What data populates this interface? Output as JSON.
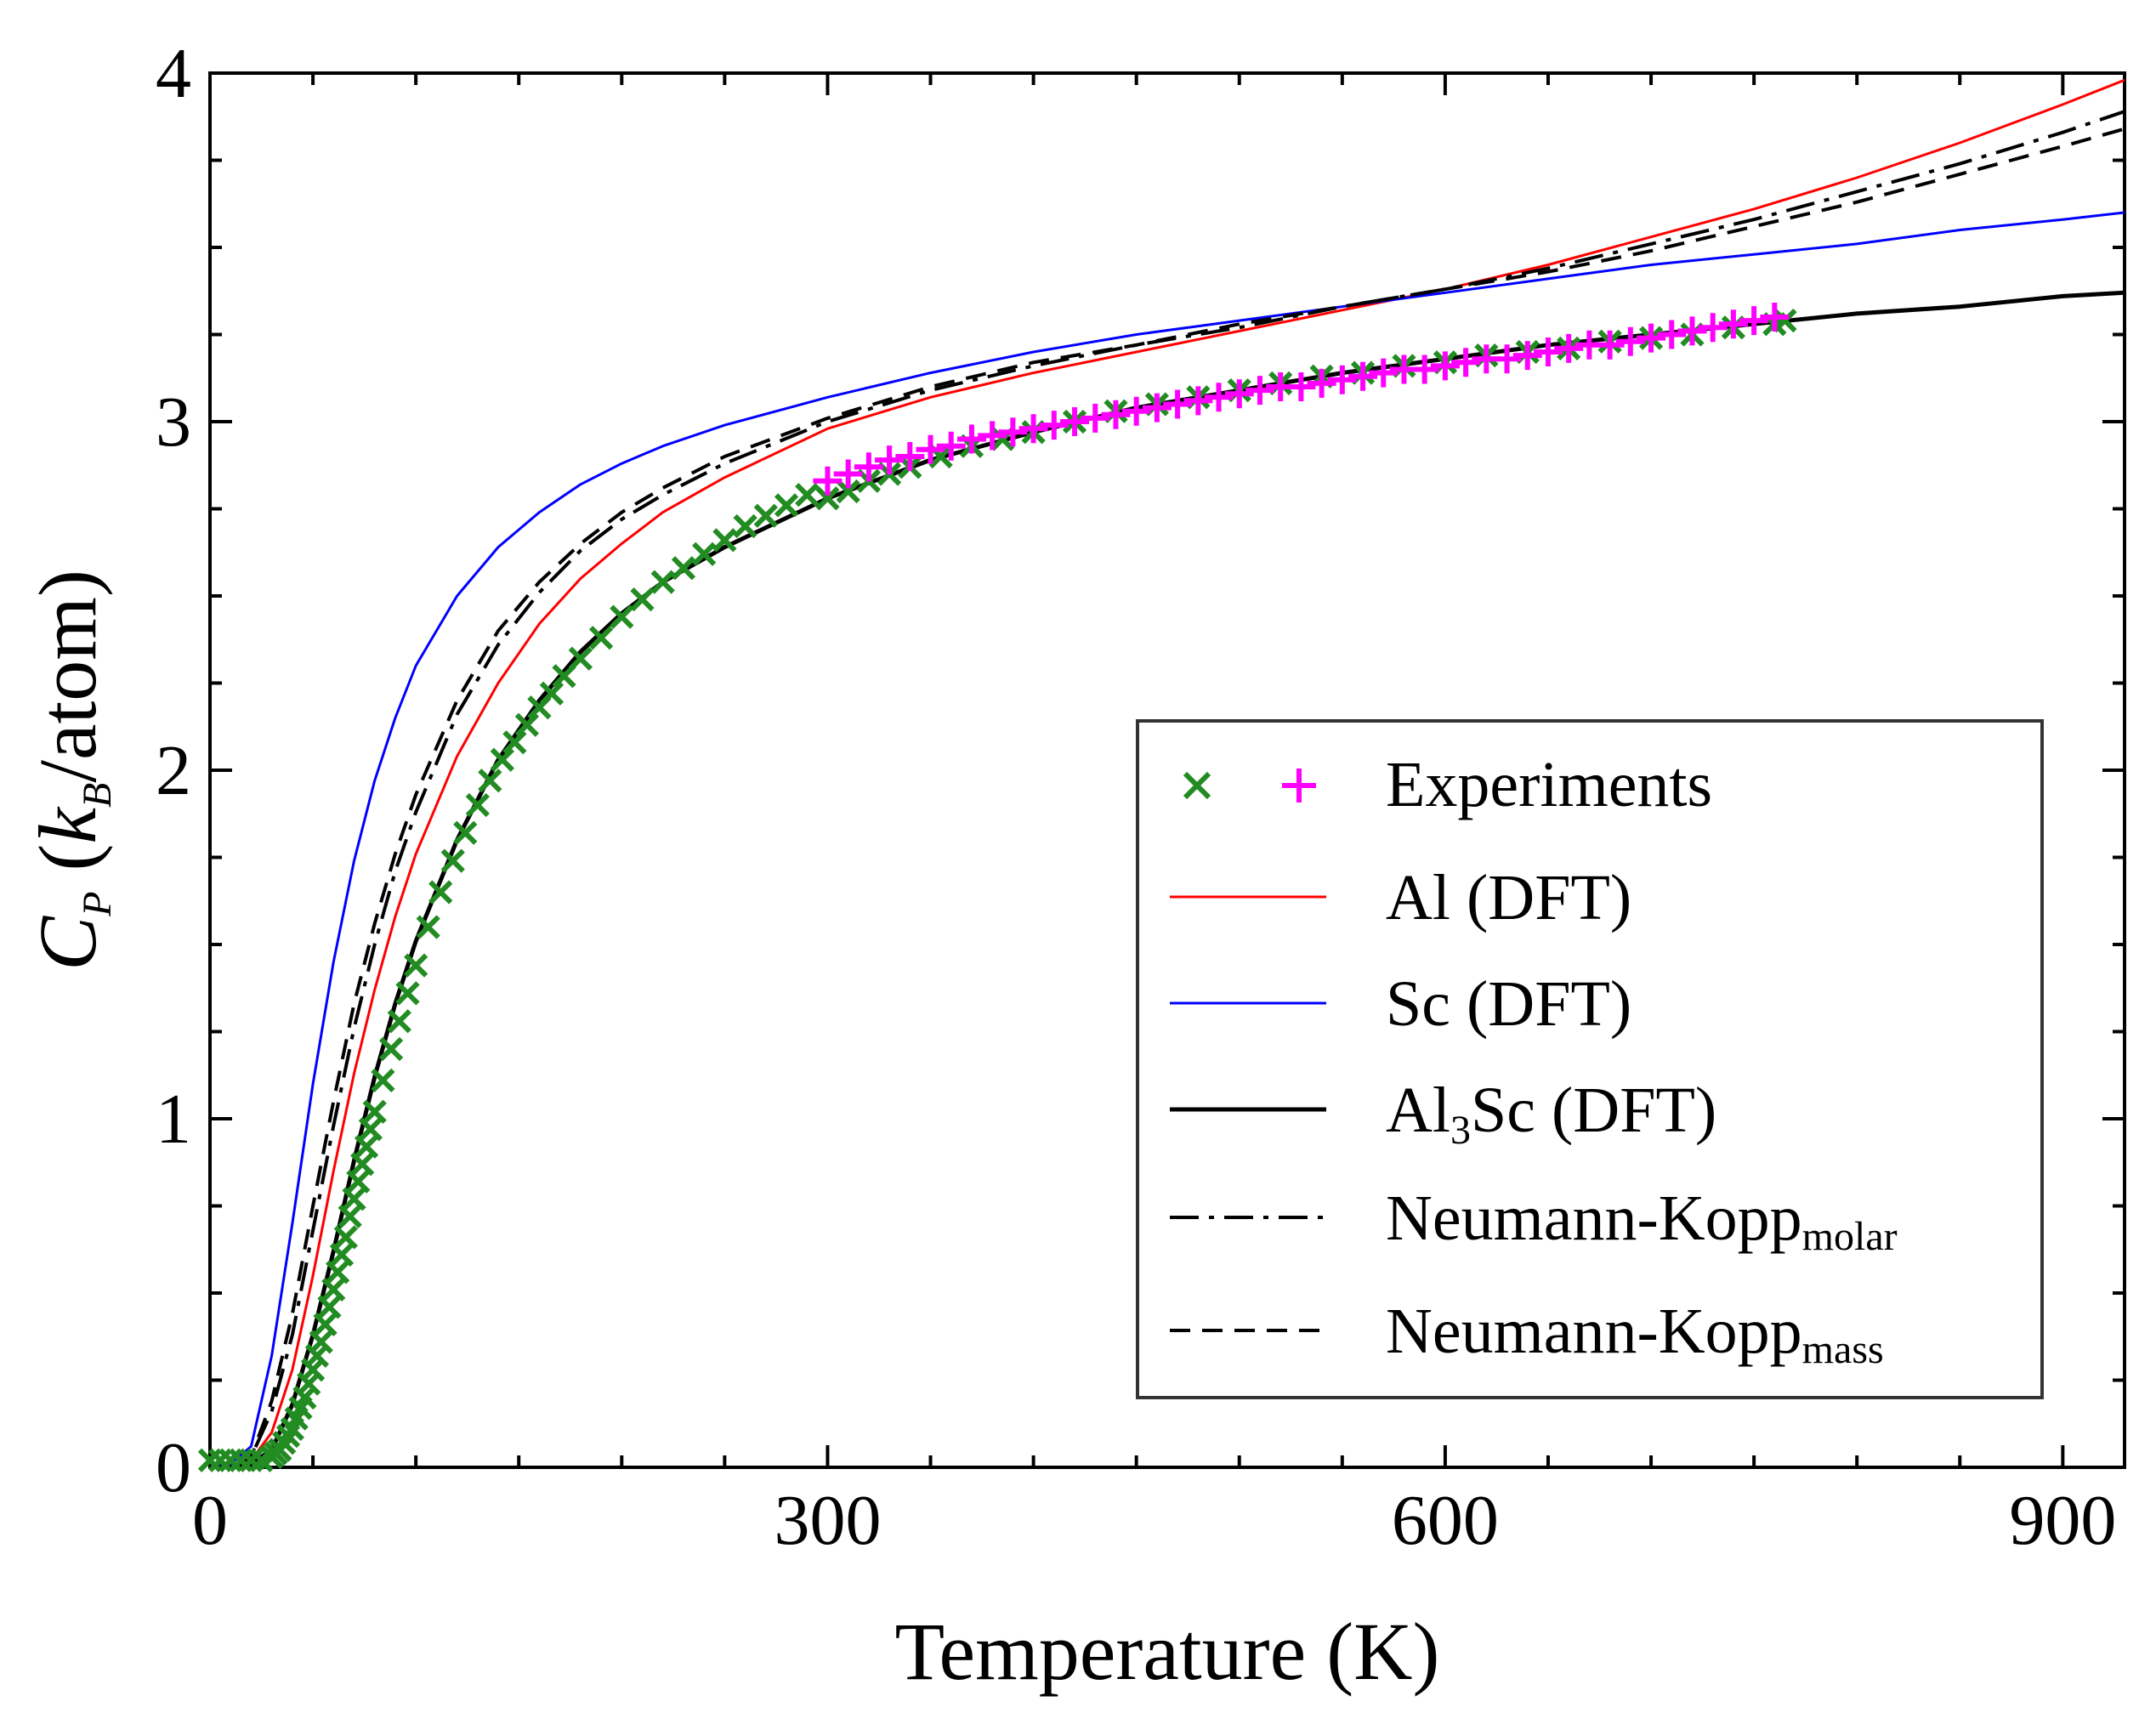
{
  "chart_data": {
    "type": "line",
    "title": "",
    "xlabel": "Temperature (K)",
    "ylabel": {
      "main": "C",
      "main_sub": "P",
      "paren_open": " (",
      "k": "k",
      "k_sub": "B",
      "rest": "/atom)"
    },
    "xlim": [
      0,
      930
    ],
    "ylim": [
      0,
      4
    ],
    "x_ticks": [
      0,
      300,
      600,
      900
    ],
    "x_tick_labels": [
      "0",
      "300",
      "600",
      "900"
    ],
    "y_ticks": [
      0,
      1,
      2,
      3,
      4
    ],
    "y_tick_labels": [
      "0",
      "1",
      "2",
      "3",
      "4"
    ],
    "x_minor_step": 50,
    "y_minor_step": 0.25,
    "grid": false,
    "legend_position": "bottom-right",
    "series": [
      {
        "name": "Al (DFT)",
        "key": "al",
        "style": "solid",
        "color": "#ff0000",
        "width": 3,
        "x": [
          0,
          10,
          20,
          30,
          40,
          50,
          60,
          70,
          80,
          90,
          100,
          120,
          140,
          160,
          180,
          200,
          220,
          250,
          300,
          350,
          400,
          450,
          500,
          550,
          600,
          650,
          700,
          750,
          800,
          850,
          900,
          930
        ],
        "y": [
          0.0,
          0.0,
          0.02,
          0.1,
          0.28,
          0.55,
          0.85,
          1.13,
          1.37,
          1.58,
          1.76,
          2.04,
          2.25,
          2.42,
          2.55,
          2.65,
          2.74,
          2.84,
          2.98,
          3.07,
          3.14,
          3.2,
          3.26,
          3.32,
          3.38,
          3.45,
          3.53,
          3.61,
          3.7,
          3.8,
          3.91,
          3.98
        ]
      },
      {
        "name": "Sc (DFT)",
        "key": "sc",
        "style": "solid",
        "color": "#0000ff",
        "width": 3,
        "x": [
          0,
          10,
          20,
          30,
          40,
          50,
          60,
          70,
          80,
          90,
          100,
          120,
          140,
          160,
          180,
          200,
          220,
          250,
          300,
          350,
          400,
          450,
          500,
          550,
          600,
          650,
          700,
          750,
          800,
          850,
          900,
          930
        ],
        "y": [
          0.0,
          0.01,
          0.06,
          0.32,
          0.7,
          1.1,
          1.45,
          1.74,
          1.97,
          2.15,
          2.3,
          2.5,
          2.64,
          2.74,
          2.82,
          2.88,
          2.93,
          2.99,
          3.07,
          3.14,
          3.2,
          3.25,
          3.29,
          3.33,
          3.37,
          3.41,
          3.45,
          3.48,
          3.51,
          3.55,
          3.58,
          3.6
        ]
      },
      {
        "name": "Al3Sc (DFT)",
        "key": "al3sc",
        "style": "solid",
        "color": "#000000",
        "width": 5,
        "x": [
          0,
          10,
          20,
          30,
          40,
          50,
          60,
          70,
          80,
          90,
          100,
          120,
          140,
          160,
          180,
          200,
          220,
          250,
          300,
          350,
          400,
          450,
          500,
          550,
          600,
          650,
          700,
          750,
          800,
          850,
          900,
          930
        ],
        "y": [
          0.0,
          0.0,
          0.01,
          0.05,
          0.18,
          0.38,
          0.62,
          0.88,
          1.12,
          1.33,
          1.51,
          1.8,
          2.03,
          2.2,
          2.34,
          2.45,
          2.54,
          2.64,
          2.78,
          2.89,
          2.97,
          3.04,
          3.09,
          3.14,
          3.18,
          3.22,
          3.25,
          3.28,
          3.31,
          3.33,
          3.36,
          3.37
        ]
      },
      {
        "name": "Neumann-Kopp (molar)",
        "key": "nk_molar",
        "style": "dashdot",
        "color": "#000000",
        "width": 4,
        "x": [
          0,
          10,
          20,
          30,
          40,
          50,
          60,
          70,
          80,
          90,
          100,
          120,
          140,
          160,
          180,
          200,
          220,
          250,
          300,
          350,
          400,
          450,
          500,
          550,
          600,
          650,
          700,
          750,
          800,
          850,
          900,
          930
        ],
        "y": [
          0.0,
          0.0,
          0.03,
          0.16,
          0.38,
          0.68,
          0.98,
          1.26,
          1.5,
          1.71,
          1.88,
          2.16,
          2.36,
          2.51,
          2.63,
          2.72,
          2.79,
          2.88,
          3.0,
          3.09,
          3.16,
          3.22,
          3.27,
          3.33,
          3.38,
          3.44,
          3.51,
          3.58,
          3.66,
          3.74,
          3.83,
          3.89
        ]
      },
      {
        "name": "Neumann-Kopp (mass)",
        "key": "nk_mass",
        "style": "dashed",
        "color": "#000000",
        "width": 4,
        "x": [
          0,
          10,
          20,
          30,
          40,
          50,
          60,
          70,
          80,
          90,
          100,
          120,
          140,
          160,
          180,
          200,
          220,
          250,
          300,
          350,
          400,
          450,
          500,
          550,
          600,
          650,
          700,
          750,
          800,
          850,
          900,
          930
        ],
        "y": [
          0.0,
          0.0,
          0.03,
          0.19,
          0.44,
          0.75,
          1.05,
          1.33,
          1.56,
          1.76,
          1.93,
          2.2,
          2.4,
          2.54,
          2.65,
          2.74,
          2.81,
          2.9,
          3.01,
          3.1,
          3.17,
          3.22,
          3.28,
          3.33,
          3.38,
          3.43,
          3.49,
          3.56,
          3.63,
          3.71,
          3.79,
          3.84
        ]
      }
    ],
    "experiments": {
      "name": "Experiments",
      "x_marker_color": "#228b22",
      "plus_marker_color": "#ff00ff",
      "x_markers": {
        "x": [
          0,
          5,
          10,
          15,
          20,
          25,
          30,
          32,
          34,
          36,
          38,
          40,
          42,
          44,
          46,
          48,
          50,
          52,
          54,
          56,
          58,
          60,
          62,
          64,
          66,
          68,
          70,
          72,
          74,
          76,
          78,
          80,
          84,
          88,
          92,
          96,
          100,
          106,
          112,
          118,
          124,
          130,
          136,
          142,
          148,
          154,
          160,
          166,
          172,
          180,
          190,
          200,
          210,
          220,
          230,
          240,
          250,
          260,
          270,
          280,
          290,
          300,
          310,
          320,
          330,
          340,
          355,
          370,
          385,
          400,
          420,
          440,
          460,
          480,
          500,
          520,
          540,
          560,
          580,
          600,
          620,
          640,
          660,
          680,
          700,
          720,
          740,
          760,
          765
        ],
        "y": [
          0.02,
          0.02,
          0.02,
          0.02,
          0.02,
          0.02,
          0.03,
          0.04,
          0.05,
          0.07,
          0.09,
          0.11,
          0.14,
          0.17,
          0.2,
          0.24,
          0.28,
          0.32,
          0.36,
          0.41,
          0.46,
          0.51,
          0.56,
          0.61,
          0.66,
          0.72,
          0.77,
          0.82,
          0.87,
          0.92,
          0.97,
          1.02,
          1.11,
          1.2,
          1.28,
          1.36,
          1.44,
          1.55,
          1.65,
          1.74,
          1.82,
          1.9,
          1.97,
          2.03,
          2.08,
          2.13,
          2.18,
          2.22,
          2.27,
          2.32,
          2.38,
          2.44,
          2.49,
          2.54,
          2.58,
          2.62,
          2.66,
          2.7,
          2.73,
          2.76,
          2.79,
          2.78,
          2.8,
          2.83,
          2.85,
          2.87,
          2.9,
          2.93,
          2.95,
          2.97,
          3.0,
          3.03,
          3.05,
          3.07,
          3.09,
          3.11,
          3.13,
          3.14,
          3.16,
          3.17,
          3.19,
          3.2,
          3.21,
          3.23,
          3.24,
          3.25,
          3.27,
          3.28,
          3.29
        ]
      },
      "plus_markers": {
        "x": [
          300,
          310,
          320,
          330,
          340,
          350,
          360,
          370,
          380,
          390,
          400,
          410,
          420,
          430,
          440,
          450,
          460,
          470,
          480,
          490,
          500,
          510,
          520,
          530,
          540,
          550,
          560,
          570,
          580,
          590,
          600,
          610,
          620,
          630,
          640,
          650,
          660,
          670,
          680,
          690,
          700,
          710,
          720,
          730,
          740,
          750,
          760
        ],
        "y": [
          2.83,
          2.85,
          2.87,
          2.89,
          2.9,
          2.92,
          2.93,
          2.95,
          2.96,
          2.97,
          2.98,
          2.99,
          3.0,
          3.01,
          3.02,
          3.03,
          3.04,
          3.05,
          3.06,
          3.07,
          3.08,
          3.09,
          3.1,
          3.1,
          3.11,
          3.12,
          3.13,
          3.14,
          3.15,
          3.15,
          3.16,
          3.17,
          3.18,
          3.18,
          3.19,
          3.2,
          3.21,
          3.22,
          3.22,
          3.23,
          3.24,
          3.25,
          3.26,
          3.27,
          3.28,
          3.29,
          3.3
        ]
      }
    },
    "legend": [
      {
        "key": "experiments",
        "label": "Experiments"
      },
      {
        "key": "al",
        "label": "Al (DFT)"
      },
      {
        "key": "sc",
        "label": "Sc (DFT)"
      },
      {
        "key": "al3sc",
        "label_main": "Al",
        "label_sub": "3",
        "label_rest": "Sc (DFT)"
      },
      {
        "key": "nk_molar",
        "label_main": "Neumann-Kopp",
        "label_sub": "molar"
      },
      {
        "key": "nk_mass",
        "label_main": "Neumann-Kopp",
        "label_sub": "mass"
      }
    ]
  }
}
